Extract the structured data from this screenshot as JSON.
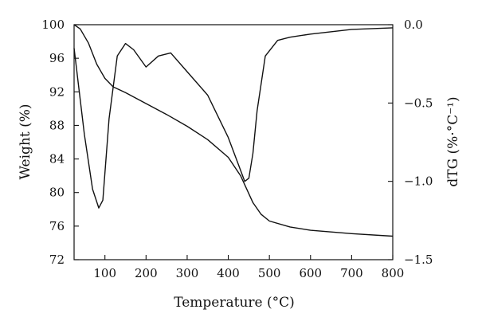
{
  "chart_data": {
    "type": "line",
    "title": "",
    "xlabel": "Temperature (°C)",
    "ylabel_left": "Weight (%)",
    "ylabel_right": "dTG (%·°C⁻¹)",
    "xlim": [
      25,
      800
    ],
    "ylim_left": [
      72,
      100
    ],
    "ylim_right": [
      -1.5,
      0.0
    ],
    "x_ticks": [
      {
        "value": 100,
        "label": "100"
      },
      {
        "value": 200,
        "label": "200"
      },
      {
        "value": 300,
        "label": "300"
      },
      {
        "value": 400,
        "label": "400"
      },
      {
        "value": 500,
        "label": "500"
      },
      {
        "value": 600,
        "label": "600"
      },
      {
        "value": 700,
        "label": "700"
      },
      {
        "value": 800,
        "label": "800"
      }
    ],
    "y_left_ticks": [
      {
        "value": 72,
        "label": "72"
      },
      {
        "value": 76,
        "label": "76"
      },
      {
        "value": 80,
        "label": "80"
      },
      {
        "value": 84,
        "label": "84"
      },
      {
        "value": 88,
        "label": "88"
      },
      {
        "value": 92,
        "label": "92"
      },
      {
        "value": 96,
        "label": "96"
      },
      {
        "value": 100,
        "label": "100"
      }
    ],
    "y_right_ticks": [
      {
        "value": 0.0,
        "label": "0.0"
      },
      {
        "value": -0.5,
        "label": "−0.5"
      },
      {
        "value": -1.0,
        "label": "−1.0"
      },
      {
        "value": -1.5,
        "label": "−1.5"
      }
    ],
    "grid": false,
    "series": [
      {
        "axis": "left",
        "x": [
          25,
          40,
          60,
          80,
          100,
          120,
          150,
          200,
          250,
          300,
          350,
          400,
          430,
          460,
          480,
          500,
          550,
          600,
          700,
          800
        ],
        "y": [
          100.0,
          99.5,
          97.8,
          95.3,
          93.6,
          92.6,
          91.9,
          90.6,
          89.3,
          87.9,
          86.3,
          84.2,
          82.0,
          78.8,
          77.4,
          76.6,
          75.9,
          75.5,
          75.1,
          74.8
        ]
      },
      {
        "axis": "right",
        "x": [
          25,
          50,
          70,
          85,
          95,
          110,
          130,
          150,
          170,
          200,
          230,
          260,
          300,
          350,
          400,
          430,
          440,
          450,
          460,
          470,
          490,
          520,
          550,
          600,
          700,
          800
        ],
        "y": [
          -0.15,
          -0.7,
          -1.05,
          -1.17,
          -1.12,
          -0.6,
          -0.2,
          -0.12,
          -0.16,
          -0.27,
          -0.2,
          -0.18,
          -0.3,
          -0.45,
          -0.72,
          -0.93,
          -1.0,
          -0.98,
          -0.82,
          -0.55,
          -0.2,
          -0.1,
          -0.08,
          -0.06,
          -0.03,
          -0.02
        ]
      }
    ]
  }
}
